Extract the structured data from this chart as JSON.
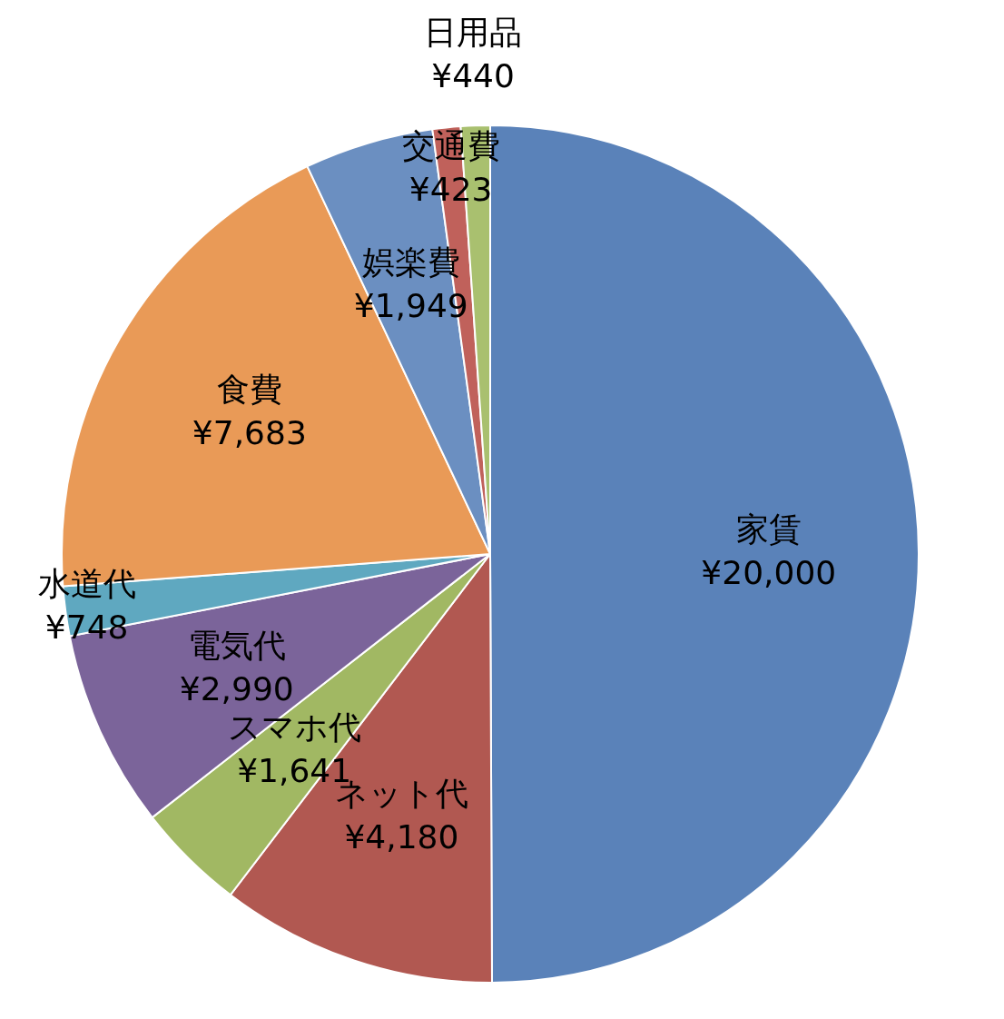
{
  "chart_data": {
    "type": "pie",
    "categories": [
      "家賃",
      "ネット代",
      "スマホ代",
      "電気代",
      "水道代",
      "食費",
      "娯楽費",
      "交通費",
      "日用品"
    ],
    "values": [
      20000,
      4180,
      1641,
      2990,
      748,
      7683,
      1949,
      423,
      440
    ],
    "value_labels": [
      "¥20,000",
      "¥4,180",
      "¥1,641",
      "¥2,990",
      "¥748",
      "¥7,683",
      "¥1,949",
      "¥423",
      "¥440"
    ],
    "colors": [
      "#5a82b9",
      "#b15851",
      "#a1b863",
      "#7b649a",
      "#5fa8c0",
      "#e99a57",
      "#6b8fc1",
      "#c0615b",
      "#a9c06f"
    ],
    "legend": false
  }
}
